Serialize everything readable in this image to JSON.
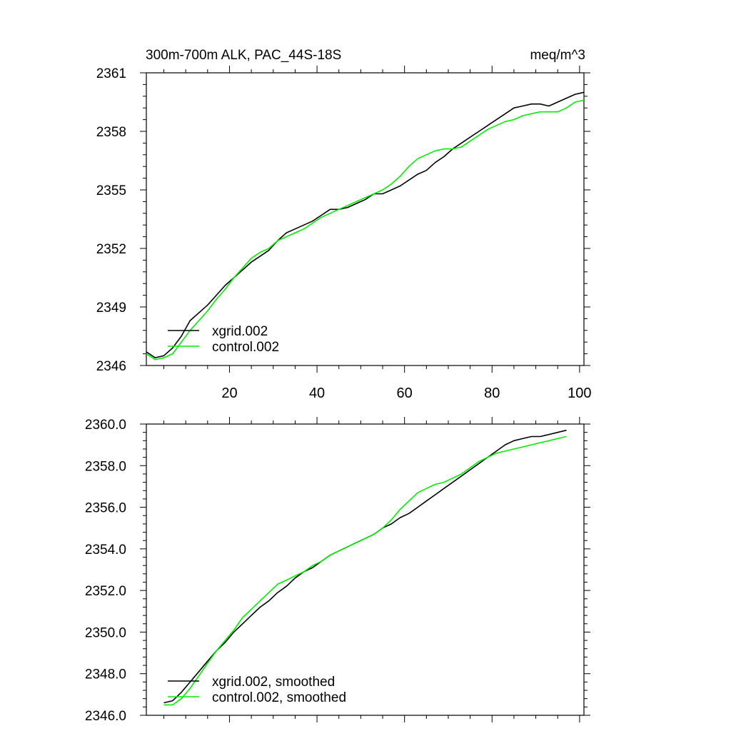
{
  "chart_data": [
    {
      "type": "line",
      "title": "300m-700m ALK, PAC_44S-18S",
      "units": "meq/m^3",
      "xlabel": "",
      "ylabel": "",
      "xlim": [
        1,
        101
      ],
      "ylim": [
        2346,
        2361
      ],
      "x_ticks": [
        20,
        40,
        60,
        80,
        100
      ],
      "x_tick_labels": [
        "20",
        "40",
        "60",
        "80",
        "100"
      ],
      "y_ticks": [
        2346,
        2349,
        2352,
        2355,
        2358,
        2361
      ],
      "y_tick_labels": [
        "2346",
        "2349",
        "2352",
        "2355",
        "2358",
        "2361"
      ],
      "legend": [
        "xgrid.002",
        "control.002"
      ],
      "legend_position": "bottom-left",
      "series": [
        {
          "name": "xgrid.002",
          "color": "#000000",
          "x": [
            1,
            3,
            5,
            7,
            9,
            11,
            13,
            15,
            17,
            19,
            21,
            23,
            25,
            27,
            29,
            31,
            33,
            35,
            37,
            39,
            41,
            43,
            45,
            47,
            49,
            51,
            53,
            55,
            57,
            59,
            61,
            63,
            65,
            67,
            69,
            71,
            73,
            75,
            77,
            79,
            81,
            83,
            85,
            87,
            89,
            91,
            93,
            95,
            97,
            99,
            101
          ],
          "values": [
            2346.7,
            2346.4,
            2346.5,
            2346.9,
            2347.5,
            2348.3,
            2348.7,
            2349.1,
            2349.6,
            2350.1,
            2350.5,
            2350.9,
            2351.3,
            2351.6,
            2351.9,
            2352.4,
            2352.8,
            2353.0,
            2353.2,
            2353.4,
            2353.7,
            2354.0,
            2354.0,
            2354.1,
            2354.3,
            2354.5,
            2354.8,
            2354.8,
            2355.0,
            2355.2,
            2355.5,
            2355.8,
            2356.0,
            2356.4,
            2356.7,
            2357.1,
            2357.4,
            2357.7,
            2358.0,
            2358.3,
            2358.6,
            2358.9,
            2359.2,
            2359.3,
            2359.4,
            2359.4,
            2359.3,
            2359.5,
            2359.7,
            2359.9,
            2360.0
          ]
        },
        {
          "name": "control.002",
          "color": "#00ee00",
          "x": [
            1,
            3,
            5,
            7,
            9,
            11,
            13,
            15,
            17,
            19,
            21,
            23,
            25,
            27,
            29,
            31,
            33,
            35,
            37,
            39,
            41,
            43,
            45,
            47,
            49,
            51,
            53,
            55,
            57,
            59,
            61,
            63,
            65,
            67,
            69,
            71,
            73,
            75,
            77,
            79,
            81,
            83,
            85,
            87,
            89,
            91,
            93,
            95,
            97,
            99,
            101
          ],
          "values": [
            2346.6,
            2346.3,
            2346.4,
            2346.6,
            2347.2,
            2347.8,
            2348.3,
            2348.8,
            2349.4,
            2349.9,
            2350.5,
            2351.0,
            2351.5,
            2351.8,
            2352.0,
            2352.4,
            2352.6,
            2352.8,
            2353.0,
            2353.3,
            2353.6,
            2353.8,
            2354.0,
            2354.2,
            2354.4,
            2354.6,
            2354.8,
            2355.0,
            2355.3,
            2355.7,
            2356.2,
            2356.6,
            2356.8,
            2357.0,
            2357.1,
            2357.1,
            2357.2,
            2357.5,
            2357.8,
            2358.1,
            2358.3,
            2358.5,
            2358.6,
            2358.8,
            2358.9,
            2359.0,
            2359.0,
            2359.0,
            2359.2,
            2359.5,
            2359.6
          ]
        }
      ]
    },
    {
      "type": "line",
      "title": "",
      "xlabel": "",
      "ylabel": "",
      "xlim": [
        1,
        101
      ],
      "ylim": [
        2346,
        2360
      ],
      "x_ticks": [
        20,
        40,
        60,
        80,
        100
      ],
      "x_tick_labels": [],
      "y_ticks": [
        2346,
        2348,
        2350,
        2352,
        2354,
        2356,
        2358,
        2360
      ],
      "y_tick_labels": [
        "2346.0",
        "2348.0",
        "2350.0",
        "2352.0",
        "2354.0",
        "2356.0",
        "2358.0",
        "2360.0"
      ],
      "legend": [
        "xgrid.002, smoothed",
        "control.002, smoothed"
      ],
      "legend_position": "bottom-left",
      "series": [
        {
          "name": "xgrid.002, smoothed",
          "color": "#000000",
          "x": [
            5,
            7,
            9,
            11,
            13,
            15,
            17,
            19,
            21,
            23,
            25,
            27,
            29,
            31,
            33,
            35,
            37,
            39,
            41,
            43,
            45,
            47,
            49,
            51,
            53,
            55,
            57,
            59,
            61,
            63,
            65,
            67,
            69,
            71,
            73,
            75,
            77,
            79,
            81,
            83,
            85,
            87,
            89,
            91,
            93,
            95,
            97
          ],
          "values": [
            2346.6,
            2346.7,
            2347.1,
            2347.6,
            2348.1,
            2348.6,
            2349.1,
            2349.5,
            2350.0,
            2350.4,
            2350.8,
            2351.2,
            2351.5,
            2351.9,
            2352.2,
            2352.6,
            2352.9,
            2353.1,
            2353.4,
            2353.7,
            2353.9,
            2354.1,
            2354.3,
            2354.5,
            2354.7,
            2355.0,
            2355.2,
            2355.5,
            2355.7,
            2356.0,
            2356.3,
            2356.6,
            2356.9,
            2357.2,
            2357.5,
            2357.8,
            2358.1,
            2358.4,
            2358.7,
            2359.0,
            2359.2,
            2359.3,
            2359.4,
            2359.4,
            2359.5,
            2359.6,
            2359.7
          ]
        },
        {
          "name": "control.002, smoothed",
          "color": "#00ee00",
          "x": [
            5,
            7,
            9,
            11,
            13,
            15,
            17,
            19,
            21,
            23,
            25,
            27,
            29,
            31,
            33,
            35,
            37,
            39,
            41,
            43,
            45,
            47,
            49,
            51,
            53,
            55,
            57,
            59,
            61,
            63,
            65,
            67,
            69,
            71,
            73,
            75,
            77,
            79,
            81,
            83,
            85,
            87,
            89,
            91,
            93,
            95,
            97
          ],
          "values": [
            2346.5,
            2346.5,
            2346.8,
            2347.3,
            2347.9,
            2348.5,
            2349.1,
            2349.6,
            2350.1,
            2350.7,
            2351.1,
            2351.5,
            2351.9,
            2352.3,
            2352.5,
            2352.7,
            2352.9,
            2353.2,
            2353.4,
            2353.7,
            2353.9,
            2354.1,
            2354.3,
            2354.5,
            2354.7,
            2355.0,
            2355.4,
            2355.9,
            2356.3,
            2356.7,
            2356.9,
            2357.1,
            2357.2,
            2357.4,
            2357.6,
            2357.9,
            2358.2,
            2358.4,
            2358.6,
            2358.7,
            2358.8,
            2358.9,
            2359.0,
            2359.1,
            2359.2,
            2359.3,
            2359.4
          ]
        }
      ]
    }
  ]
}
